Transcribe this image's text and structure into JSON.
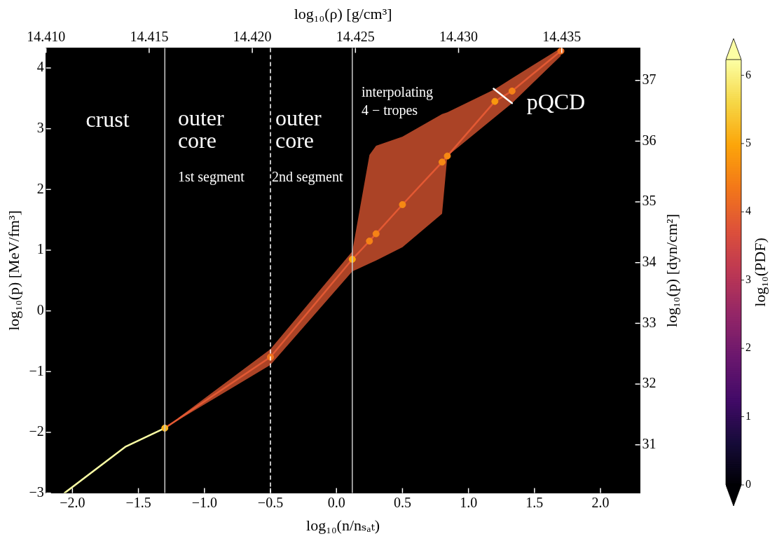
{
  "chart_data": {
    "type": "line",
    "xlabel": "log₁₀(n/nₛₐₜ)",
    "ylabel": "log₁₀(p) [MeV/fm³]",
    "y2label": "log₁₀(p) [dyn/cm²]",
    "x2label": "log₁₀(ρ) [g/cm³]",
    "clabel": "log₁₀(PDF)",
    "xlim": [
      -2.2,
      2.3
    ],
    "xticks": [
      {
        "value": -2,
        "label": "−2.0"
      },
      {
        "value": -1.5,
        "label": "−1.5"
      },
      {
        "value": -1,
        "label": "−1.0"
      },
      {
        "value": -0.5,
        "label": "−0.5"
      },
      {
        "value": 0,
        "label": "0.0"
      },
      {
        "value": 0.5,
        "label": "0.5"
      },
      {
        "value": 1,
        "label": "1.0"
      },
      {
        "value": 1.5,
        "label": "1.5"
      },
      {
        "value": 2,
        "label": "2.0"
      }
    ],
    "x2lim": [
      14.41,
      14.4388
    ],
    "x2ticks": [
      {
        "value": 14.41,
        "label": "14.410"
      },
      {
        "value": 14.415,
        "label": "14.415"
      },
      {
        "value": 14.42,
        "label": "14.420"
      },
      {
        "value": 14.425,
        "label": "14.425"
      },
      {
        "value": 14.43,
        "label": "14.430"
      },
      {
        "value": 14.435,
        "label": "14.435"
      }
    ],
    "ylim": [
      -3,
      4.33
    ],
    "yticks": [
      -3,
      -2,
      -1,
      0,
      1,
      2,
      3,
      4
    ],
    "y2lim": [
      30.205,
      37.535
    ],
    "y2ticks": [
      31,
      32,
      33,
      34,
      35,
      36,
      37
    ],
    "clim": [
      0,
      6.23
    ],
    "cticks": [
      0,
      1,
      2,
      3,
      4,
      5,
      6
    ],
    "legend": false,
    "series": [
      {
        "color": "#fcffa4",
        "x": [
          -2.06,
          -1.6,
          -1.3
        ],
        "values": [
          -3,
          -2.24,
          -1.93
        ]
      },
      {
        "color": "#e35933",
        "x": [
          -1.3,
          -0.5,
          0.12,
          0.25,
          0.3,
          0.5,
          0.8,
          0.84,
          1.2,
          1.33,
          1.7
        ],
        "values": [
          -1.93,
          -0.76,
          0.85,
          1.15,
          1.27,
          1.75,
          2.45,
          2.55,
          3.45,
          3.62,
          4.28
        ],
        "lower": [
          -1.93,
          -0.89,
          0.65,
          0.78,
          0.83,
          1.05,
          1.6,
          2.55,
          3.19,
          3.42,
          4.2
        ],
        "upper": [
          -1.93,
          -0.63,
          0.98,
          2.57,
          2.72,
          2.87,
          3.24,
          3.27,
          3.65,
          3.83,
          4.33
        ]
      },
      {
        "type": "scatter",
        "marker": "circle",
        "colors": [
          "#fab61f",
          "#f1741c",
          "#fca60c",
          "#f58216",
          "#f58216",
          "#f68913",
          "#f68913",
          "#f68913",
          "#f9980f",
          "#f58216",
          "#ed6e22"
        ],
        "x": [
          -1.3,
          -0.5,
          0.12,
          0.25,
          0.3,
          0.5,
          0.8,
          0.84,
          1.2,
          1.33,
          1.7
        ],
        "values": [
          -1.93,
          -0.76,
          0.85,
          1.15,
          1.27,
          1.75,
          2.45,
          2.55,
          3.45,
          3.62,
          4.28
        ],
        "cvalues": [
          5.2,
          4.3,
          5,
          4.5,
          4.5,
          4.6,
          4.6,
          4.6,
          4.8,
          4.5,
          4.2
        ]
      },
      {
        "color": "#ffffff",
        "x": [
          1.19,
          1.33
        ],
        "values": [
          3.66,
          3.42
        ]
      }
    ],
    "ref_lines": [
      {
        "axis": "x",
        "value": -1.3,
        "color": "#cccccc",
        "line_style": "solid"
      },
      {
        "axis": "x",
        "value": -0.5,
        "color": "#ffffff",
        "line_style": "dashed"
      },
      {
        "axis": "x",
        "value": 0.12,
        "color": "#cccccc",
        "line_style": "solid"
      }
    ],
    "annotations": [
      "crust",
      "outer\ncore",
      "1st segment",
      "outer\ncore",
      "2nd segment",
      "interpolating\n4 − tropes",
      "pQCD"
    ]
  }
}
